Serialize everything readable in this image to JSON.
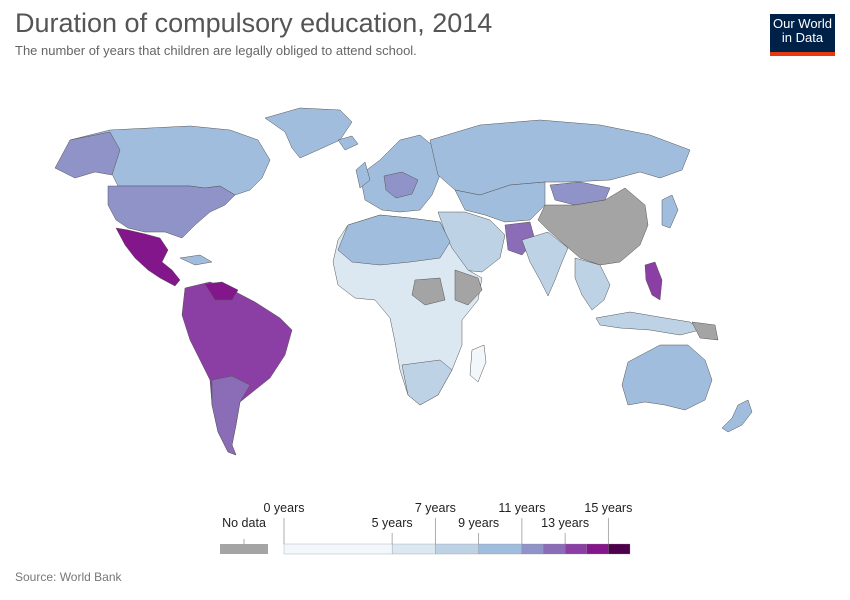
{
  "title": "Duration of compulsory education, 2014",
  "subtitle": "The number of years that children are legally obliged to attend school.",
  "source": "Source: World Bank",
  "logo": {
    "line1": "Our World",
    "line2": "in Data",
    "bg": "#002147",
    "accent": "#e63912"
  },
  "legend": {
    "no_data_label": "No data",
    "no_data_color": "#a4a4a4",
    "bins": [
      {
        "from": 0,
        "to": 5,
        "color": "#f2f7fb"
      },
      {
        "from": 5,
        "to": 7,
        "color": "#dbe7f1"
      },
      {
        "from": 7,
        "to": 9,
        "color": "#bed2e6"
      },
      {
        "from": 9,
        "to": 11,
        "color": "#a1bddd"
      },
      {
        "from": 11,
        "to": 12,
        "color": "#8f93c8"
      },
      {
        "from": 12,
        "to": 13,
        "color": "#8b6cb6"
      },
      {
        "from": 13,
        "to": 14,
        "color": "#8b3fa5"
      },
      {
        "from": 14,
        "to": 15,
        "color": "#84168b"
      },
      {
        "from": 15,
        "to": 16,
        "color": "#4d004b"
      }
    ],
    "tick_labels": [
      {
        "value": 0,
        "text": "0 years",
        "row": "top"
      },
      {
        "value": 5,
        "text": "5 years",
        "row": "bottom"
      },
      {
        "value": 7,
        "text": "7 years",
        "row": "top"
      },
      {
        "value": 9,
        "text": "9 years",
        "row": "bottom"
      },
      {
        "value": 11,
        "text": "11 years",
        "row": "top"
      },
      {
        "value": 13,
        "text": "13 years",
        "row": "bottom"
      },
      {
        "value": 15,
        "text": "15 years",
        "row": "top"
      }
    ]
  },
  "regions": [
    {
      "name": "North America",
      "color": "#a1bddd"
    },
    {
      "name": "USA",
      "color": "#8f93c8"
    },
    {
      "name": "Mexico",
      "color": "#84168b"
    },
    {
      "name": "Greenland",
      "color": "#a1bddd"
    },
    {
      "name": "South America",
      "color": "#8b3fa5"
    },
    {
      "name": "Europe",
      "color": "#a1bddd"
    },
    {
      "name": "Russia",
      "color": "#a1bddd"
    },
    {
      "name": "China",
      "color": "#a4a4a4"
    },
    {
      "name": "Africa",
      "color": "#dbe7f1"
    },
    {
      "name": "Australia",
      "color": "#a1bddd"
    },
    {
      "name": "Philippines",
      "color": "#8b3fa5"
    }
  ]
}
